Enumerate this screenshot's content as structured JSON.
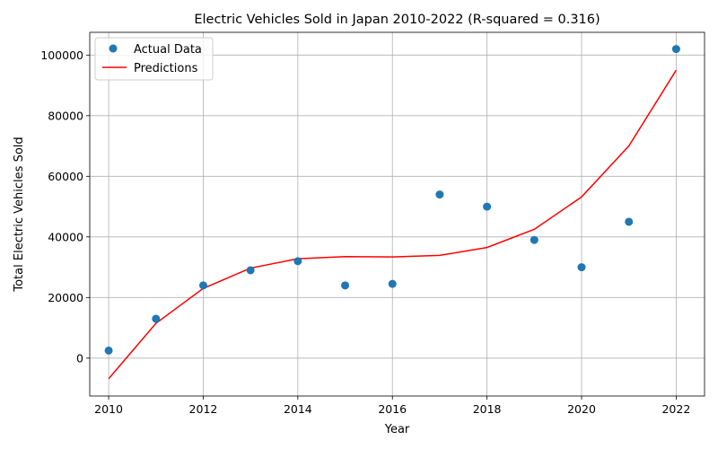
{
  "chart_data": {
    "type": "scatter",
    "title": "Electric Vehicles Sold in Japan 2010-2022 (R-squared = 0.316)",
    "xlabel": "Year",
    "ylabel": "Total Electric Vehicles Sold",
    "xlim": [
      2009.6,
      2022.6
    ],
    "ylim": [
      -12500,
      107500
    ],
    "xticks": [
      2010,
      2012,
      2014,
      2016,
      2018,
      2020,
      2022
    ],
    "yticks": [
      0,
      20000,
      40000,
      60000,
      80000,
      100000
    ],
    "grid": true,
    "legend_position": "top-left",
    "series": [
      {
        "name": "Actual Data",
        "kind": "scatter",
        "color": "#1f77b4",
        "x": [
          2010,
          2011,
          2012,
          2013,
          2014,
          2015,
          2016,
          2017,
          2018,
          2019,
          2020,
          2021,
          2022
        ],
        "y": [
          2500,
          13000,
          24000,
          29000,
          32000,
          24000,
          24500,
          54000,
          50000,
          39000,
          30000,
          45000,
          102000
        ]
      },
      {
        "name": "Predictions",
        "kind": "line",
        "color": "#ff0000",
        "x": [
          2010,
          2011,
          2012,
          2013,
          2014,
          2015,
          2016,
          2017,
          2018,
          2019,
          2020,
          2021,
          2022
        ],
        "y": [
          -6800,
          11500,
          23000,
          29700,
          32800,
          33500,
          33400,
          33900,
          36500,
          42500,
          53200,
          70000,
          95000
        ]
      }
    ]
  }
}
